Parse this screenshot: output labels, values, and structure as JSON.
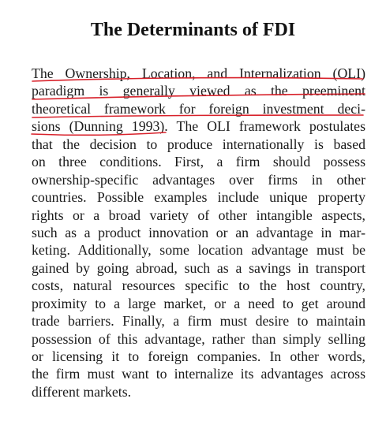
{
  "document": {
    "title": "The Determinants of FDI",
    "lines": [
      "The Ownership, Location, and Internalization (OLI)",
      "paradigm is generally viewed as the preeminent",
      "theoretical framework for foreign investment deci-",
      "sions (Dunning 1993). The OLI framework postulates",
      "that the decision to produce internationally is based",
      "on three conditions. First, a firm should possess",
      "ownership-specific advantages over firms in other",
      "countries. Possible examples include unique property",
      "rights or a broad variety of other intangible aspects,",
      "such as a product innovation or an advantage in mar-",
      "keting. Additionally, some location advantage must be",
      "gained by going abroad, such as a savings in transport",
      "costs, natural resources specific to the host country,",
      "proximity to a large market, or a need to get around",
      "trade barriers. Finally, a firm must desire to maintain",
      "possession of this advantage, rather than simply selling",
      "or licensing it to foreign companies. In other words,",
      "the firm must want to internalize its advantages across",
      "different markets."
    ]
  },
  "annotation": {
    "underline_color": "#d8222b"
  }
}
